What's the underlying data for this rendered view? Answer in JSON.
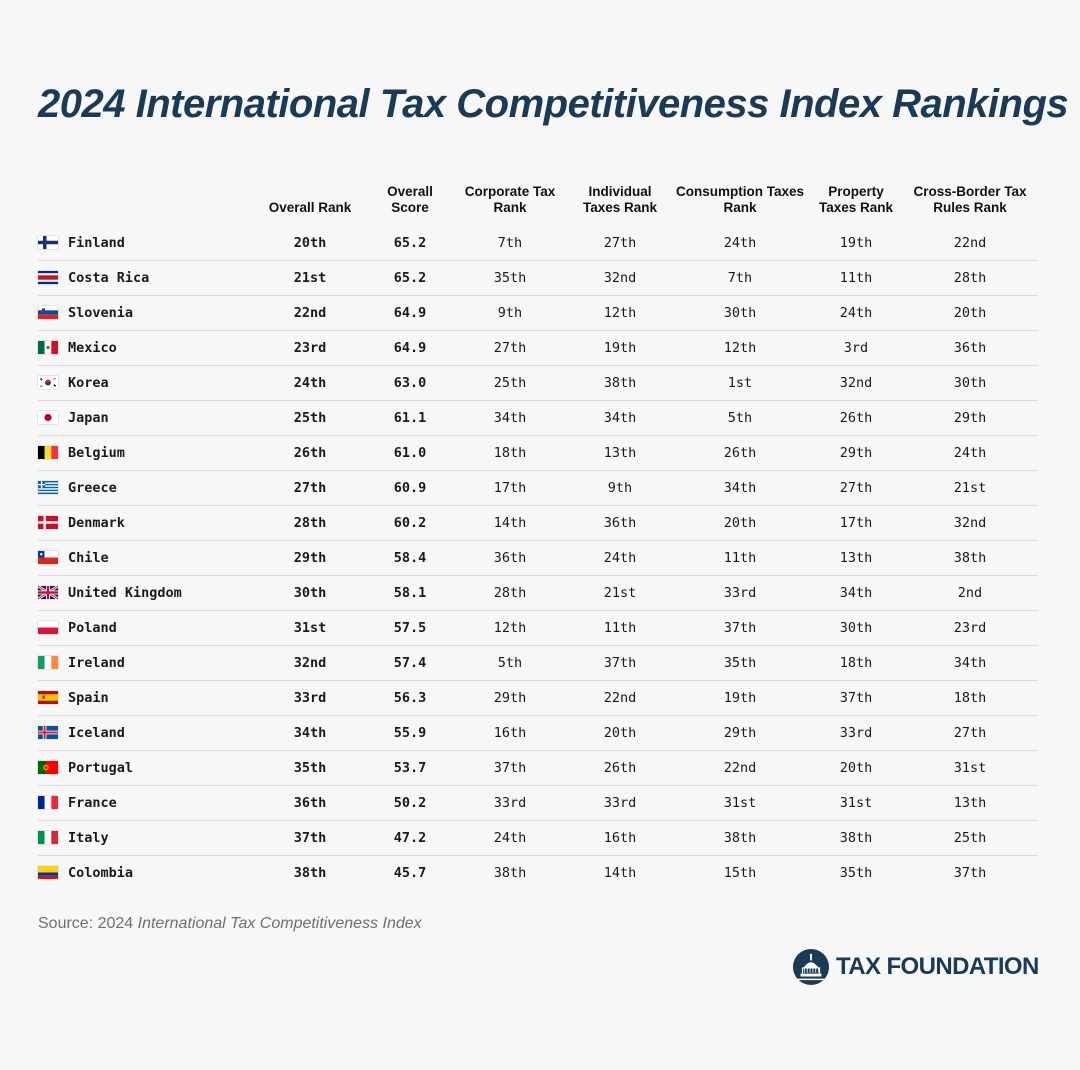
{
  "chart_data": {
    "type": "table",
    "title": "2024 International Tax Competitiveness Index Rankings",
    "columns": [
      "",
      "Overall Rank",
      "Overall Score",
      "Corporate Tax Rank",
      "Individual Taxes Rank",
      "Consumption Taxes Rank",
      "Property Taxes Rank",
      "Cross-Border Tax Rules Rank"
    ],
    "rows": [
      {
        "country": "Finland",
        "flag": "finland-flag",
        "overall_rank": "20th",
        "overall_score": "65.2",
        "corporate": "7th",
        "individual": "27th",
        "consumption": "24th",
        "property": "19th",
        "cross_border": "22nd"
      },
      {
        "country": "Costa Rica",
        "flag": "costa-rica-flag",
        "overall_rank": "21st",
        "overall_score": "65.2",
        "corporate": "35th",
        "individual": "32nd",
        "consumption": "7th",
        "property": "11th",
        "cross_border": "28th"
      },
      {
        "country": "Slovenia",
        "flag": "slovenia-flag",
        "overall_rank": "22nd",
        "overall_score": "64.9",
        "corporate": "9th",
        "individual": "12th",
        "consumption": "30th",
        "property": "24th",
        "cross_border": "20th"
      },
      {
        "country": "Mexico",
        "flag": "mexico-flag",
        "overall_rank": "23rd",
        "overall_score": "64.9",
        "corporate": "27th",
        "individual": "19th",
        "consumption": "12th",
        "property": "3rd",
        "cross_border": "36th"
      },
      {
        "country": "Korea",
        "flag": "korea-flag",
        "overall_rank": "24th",
        "overall_score": "63.0",
        "corporate": "25th",
        "individual": "38th",
        "consumption": "1st",
        "property": "32nd",
        "cross_border": "30th"
      },
      {
        "country": "Japan",
        "flag": "japan-flag",
        "overall_rank": "25th",
        "overall_score": "61.1",
        "corporate": "34th",
        "individual": "34th",
        "consumption": "5th",
        "property": "26th",
        "cross_border": "29th"
      },
      {
        "country": "Belgium",
        "flag": "belgium-flag",
        "overall_rank": "26th",
        "overall_score": "61.0",
        "corporate": "18th",
        "individual": "13th",
        "consumption": "26th",
        "property": "29th",
        "cross_border": "24th"
      },
      {
        "country": "Greece",
        "flag": "greece-flag",
        "overall_rank": "27th",
        "overall_score": "60.9",
        "corporate": "17th",
        "individual": "9th",
        "consumption": "34th",
        "property": "27th",
        "cross_border": "21st"
      },
      {
        "country": "Denmark",
        "flag": "denmark-flag",
        "overall_rank": "28th",
        "overall_score": "60.2",
        "corporate": "14th",
        "individual": "36th",
        "consumption": "20th",
        "property": "17th",
        "cross_border": "32nd"
      },
      {
        "country": "Chile",
        "flag": "chile-flag",
        "overall_rank": "29th",
        "overall_score": "58.4",
        "corporate": "36th",
        "individual": "24th",
        "consumption": "11th",
        "property": "13th",
        "cross_border": "38th"
      },
      {
        "country": "United Kingdom",
        "flag": "united-kingdom-flag",
        "overall_rank": "30th",
        "overall_score": "58.1",
        "corporate": "28th",
        "individual": "21st",
        "consumption": "33rd",
        "property": "34th",
        "cross_border": "2nd"
      },
      {
        "country": "Poland",
        "flag": "poland-flag",
        "overall_rank": "31st",
        "overall_score": "57.5",
        "corporate": "12th",
        "individual": "11th",
        "consumption": "37th",
        "property": "30th",
        "cross_border": "23rd"
      },
      {
        "country": "Ireland",
        "flag": "ireland-flag",
        "overall_rank": "32nd",
        "overall_score": "57.4",
        "corporate": "5th",
        "individual": "37th",
        "consumption": "35th",
        "property": "18th",
        "cross_border": "34th"
      },
      {
        "country": "Spain",
        "flag": "spain-flag",
        "overall_rank": "33rd",
        "overall_score": "56.3",
        "corporate": "29th",
        "individual": "22nd",
        "consumption": "19th",
        "property": "37th",
        "cross_border": "18th"
      },
      {
        "country": "Iceland",
        "flag": "iceland-flag",
        "overall_rank": "34th",
        "overall_score": "55.9",
        "corporate": "16th",
        "individual": "20th",
        "consumption": "29th",
        "property": "33rd",
        "cross_border": "27th"
      },
      {
        "country": "Portugal",
        "flag": "portugal-flag",
        "overall_rank": "35th",
        "overall_score": "53.7",
        "corporate": "37th",
        "individual": "26th",
        "consumption": "22nd",
        "property": "20th",
        "cross_border": "31st"
      },
      {
        "country": "France",
        "flag": "france-flag",
        "overall_rank": "36th",
        "overall_score": "50.2",
        "corporate": "33rd",
        "individual": "33rd",
        "consumption": "31st",
        "property": "31st",
        "cross_border": "13th"
      },
      {
        "country": "Italy",
        "flag": "italy-flag",
        "overall_rank": "37th",
        "overall_score": "47.2",
        "corporate": "24th",
        "individual": "16th",
        "consumption": "38th",
        "property": "38th",
        "cross_border": "25th"
      },
      {
        "country": "Colombia",
        "flag": "colombia-flag",
        "overall_rank": "38th",
        "overall_score": "45.7",
        "corporate": "38th",
        "individual": "14th",
        "consumption": "15th",
        "property": "35th",
        "cross_border": "37th"
      }
    ]
  },
  "footer": {
    "source_prefix": "Source: 2024 ",
    "source_italic": "International Tax Competitiveness Index",
    "logo_text": "TAX FOUNDATION",
    "logo_icon": "capitol-dome-icon"
  },
  "colors": {
    "title": "#1b3a55",
    "background": "#f7f7f7",
    "row_divider": "#dcdcdc",
    "brand": "#1b3a55"
  }
}
